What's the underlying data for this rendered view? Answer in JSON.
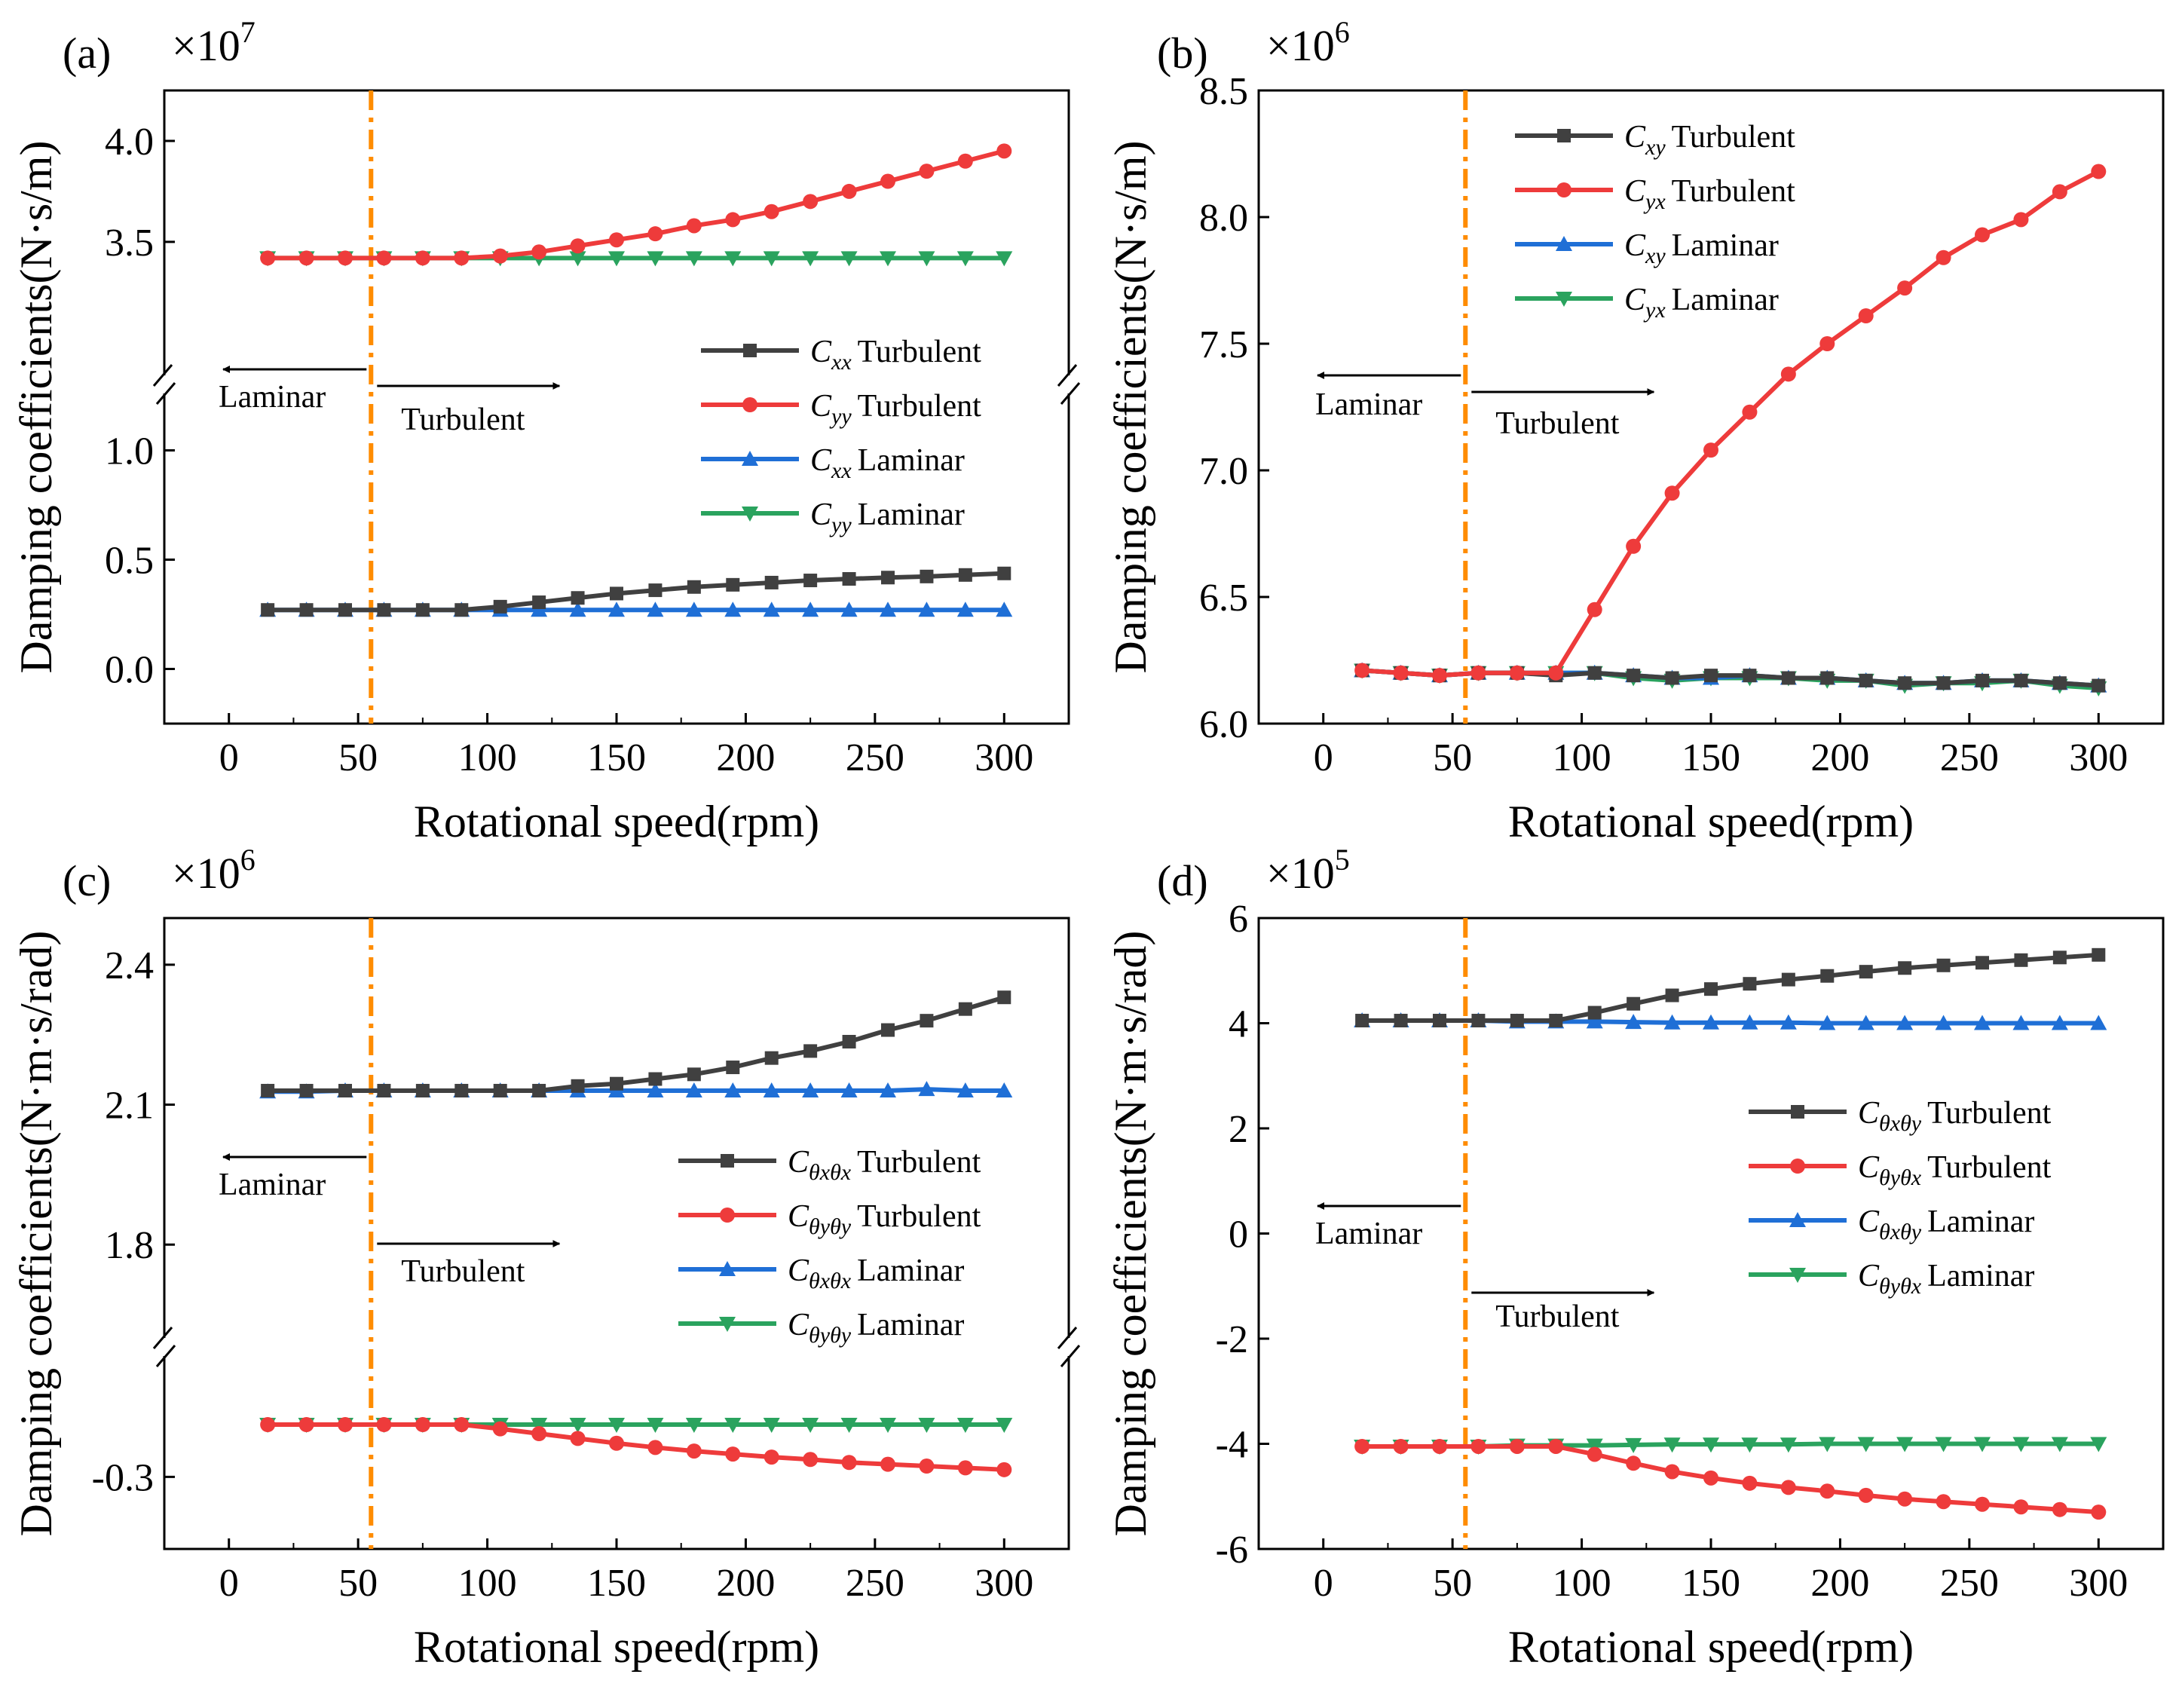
{
  "figure": {
    "colors": {
      "Turbulent_main": "#404040",
      "Turbulent_cross": "#ee3b3b",
      "Laminar_main": "#1f6fd6",
      "Laminar_cross": "#2aa35e",
      "transition": "#ff8c00"
    }
  },
  "chart_data": [
    {
      "id": "a",
      "type": "line",
      "panel_label": "(a)",
      "multiplier": "×10",
      "multiplier_exp": "7",
      "xlabel": "Rotational speed(rpm)",
      "ylabel": "Damping coefficients(N·s/m)",
      "xlim": [
        -25,
        325
      ],
      "xticks": [
        "0",
        "50",
        "100",
        "150",
        "200",
        "250",
        "300"
      ],
      "y_segments": [
        {
          "range": [
            -0.25,
            1.25
          ],
          "ticks": [
            "0.0",
            "0.5",
            "1.0"
          ],
          "tick_values": [
            0.0,
            0.5,
            1.0
          ]
        },
        {
          "range": [
            2.85,
            4.25
          ],
          "ticks": [
            "3.5",
            "4.0"
          ],
          "tick_values": [
            3.5,
            4.0
          ]
        }
      ],
      "x": [
        15,
        30,
        45,
        60,
        75,
        90,
        105,
        120,
        135,
        150,
        165,
        180,
        195,
        210,
        225,
        240,
        255,
        270,
        285,
        300
      ],
      "series": [
        {
          "name": "C",
          "sub": "xx",
          "label": "Turbulent",
          "color": "#404040",
          "marker": "square",
          "values": [
            0.27,
            0.27,
            0.27,
            0.27,
            0.27,
            0.27,
            0.285,
            0.305,
            0.325,
            0.345,
            0.36,
            0.375,
            0.385,
            0.395,
            0.405,
            0.412,
            0.418,
            0.423,
            0.43,
            0.437
          ]
        },
        {
          "name": "C",
          "sub": "yy",
          "label": "Turbulent",
          "color": "#ee3b3b",
          "marker": "circle",
          "values": [
            3.42,
            3.42,
            3.42,
            3.42,
            3.42,
            3.42,
            3.43,
            3.45,
            3.48,
            3.51,
            3.54,
            3.58,
            3.61,
            3.65,
            3.7,
            3.75,
            3.8,
            3.85,
            3.9,
            3.95
          ]
        },
        {
          "name": "C",
          "sub": "xx",
          "label": "Laminar",
          "color": "#1f6fd6",
          "marker": "triangle-up",
          "values": [
            0.27,
            0.27,
            0.27,
            0.27,
            0.27,
            0.27,
            0.27,
            0.27,
            0.27,
            0.27,
            0.27,
            0.27,
            0.27,
            0.27,
            0.27,
            0.27,
            0.27,
            0.27,
            0.27,
            0.27
          ]
        },
        {
          "name": "C",
          "sub": "yy",
          "label": "Laminar",
          "color": "#2aa35e",
          "marker": "triangle-down",
          "values": [
            3.42,
            3.42,
            3.42,
            3.42,
            3.42,
            3.42,
            3.42,
            3.42,
            3.42,
            3.42,
            3.42,
            3.42,
            3.42,
            3.42,
            3.42,
            3.42,
            3.42,
            3.42,
            3.42,
            3.42
          ]
        }
      ],
      "transition_x": 55,
      "annotations": {
        "laminar": "Laminar",
        "turbulent": "Turbulent"
      },
      "legend_position": "right"
    },
    {
      "id": "b",
      "type": "line",
      "panel_label": "(b)",
      "multiplier": "×10",
      "multiplier_exp": "6",
      "xlabel": "Rotational speed(rpm)",
      "ylabel": "Damping coefficients(N·s/m)",
      "xlim": [
        -25,
        325
      ],
      "xticks": [
        "0",
        "50",
        "100",
        "150",
        "200",
        "250",
        "300"
      ],
      "y_segments": [
        {
          "range": [
            6.0,
            8.5
          ],
          "ticks": [
            "6.0",
            "6.5",
            "7.0",
            "7.5",
            "8.0",
            "8.5"
          ],
          "tick_values": [
            6.0,
            6.5,
            7.0,
            7.5,
            8.0,
            8.5
          ]
        }
      ],
      "x": [
        15,
        30,
        45,
        60,
        75,
        90,
        105,
        120,
        135,
        150,
        165,
        180,
        195,
        210,
        225,
        240,
        255,
        270,
        285,
        300
      ],
      "series": [
        {
          "name": "C",
          "sub": "xy",
          "label": "Turbulent",
          "color": "#404040",
          "marker": "square",
          "values": [
            6.21,
            6.2,
            6.19,
            6.2,
            6.2,
            6.19,
            6.2,
            6.19,
            6.18,
            6.19,
            6.19,
            6.18,
            6.18,
            6.17,
            6.16,
            6.16,
            6.17,
            6.17,
            6.16,
            6.15
          ]
        },
        {
          "name": "C",
          "sub": "yx",
          "label": "Turbulent",
          "color": "#ee3b3b",
          "marker": "circle",
          "values": [
            6.21,
            6.2,
            6.19,
            6.2,
            6.2,
            6.2,
            6.45,
            6.7,
            6.91,
            7.08,
            7.23,
            7.38,
            7.5,
            7.61,
            7.72,
            7.84,
            7.93,
            7.99,
            8.1,
            8.18
          ]
        },
        {
          "name": "C",
          "sub": "xy",
          "label": "Laminar",
          "color": "#1f6fd6",
          "marker": "triangle-up",
          "values": [
            6.21,
            6.2,
            6.19,
            6.2,
            6.2,
            6.2,
            6.2,
            6.19,
            6.18,
            6.18,
            6.19,
            6.18,
            6.18,
            6.17,
            6.16,
            6.16,
            6.17,
            6.17,
            6.16,
            6.15
          ]
        },
        {
          "name": "C",
          "sub": "yx",
          "label": "Laminar",
          "color": "#2aa35e",
          "marker": "triangle-down",
          "values": [
            6.21,
            6.2,
            6.19,
            6.2,
            6.2,
            6.2,
            6.2,
            6.18,
            6.17,
            6.18,
            6.18,
            6.18,
            6.17,
            6.17,
            6.15,
            6.16,
            6.16,
            6.17,
            6.15,
            6.14
          ]
        }
      ],
      "transition_x": 55,
      "annotations": {
        "laminar": "Laminar",
        "turbulent": "Turbulent"
      },
      "legend_position": "top-left"
    },
    {
      "id": "c",
      "type": "line",
      "panel_label": "(c)",
      "multiplier": "×10",
      "multiplier_exp": "6",
      "xlabel": "Rotational speed(rpm)",
      "ylabel": "Damping coefficients(N·m·s/rad)",
      "xlim": [
        -25,
        325
      ],
      "xticks": [
        "0",
        "50",
        "100",
        "150",
        "200",
        "250",
        "300"
      ],
      "y_segments": [
        {
          "range": [
            -0.42,
            -0.1
          ],
          "ticks": [
            "-0.3"
          ],
          "tick_values": [
            -0.3
          ]
        },
        {
          "range": [
            1.6,
            2.5
          ],
          "ticks": [
            "1.8",
            "2.1",
            "2.4"
          ],
          "tick_values": [
            1.8,
            2.1,
            2.4
          ]
        }
      ],
      "x": [
        15,
        30,
        45,
        60,
        75,
        90,
        105,
        120,
        135,
        150,
        165,
        180,
        195,
        210,
        225,
        240,
        255,
        270,
        285,
        300
      ],
      "series": [
        {
          "name": "C",
          "sub": "θxθx",
          "label": "Turbulent",
          "color": "#404040",
          "marker": "square",
          "values": [
            2.13,
            2.13,
            2.13,
            2.13,
            2.13,
            2.13,
            2.13,
            2.13,
            2.14,
            2.145,
            2.155,
            2.165,
            2.18,
            2.2,
            2.215,
            2.235,
            2.26,
            2.28,
            2.305,
            2.33
          ]
        },
        {
          "name": "C",
          "sub": "θyθy",
          "label": "Turbulent",
          "color": "#ee3b3b",
          "marker": "circle",
          "values": [
            -0.213,
            -0.213,
            -0.213,
            -0.213,
            -0.213,
            -0.213,
            -0.22,
            -0.228,
            -0.236,
            -0.244,
            -0.251,
            -0.257,
            -0.262,
            -0.267,
            -0.271,
            -0.276,
            -0.279,
            -0.282,
            -0.285,
            -0.288
          ]
        },
        {
          "name": "C",
          "sub": "θxθx",
          "label": "Laminar",
          "color": "#1f6fd6",
          "marker": "triangle-up",
          "values": [
            2.128,
            2.128,
            2.13,
            2.13,
            2.13,
            2.13,
            2.13,
            2.13,
            2.13,
            2.13,
            2.13,
            2.13,
            2.13,
            2.13,
            2.13,
            2.13,
            2.13,
            2.133,
            2.13,
            2.13
          ]
        },
        {
          "name": "C",
          "sub": "θyθy",
          "label": "Laminar",
          "color": "#2aa35e",
          "marker": "triangle-down",
          "values": [
            -0.213,
            -0.213,
            -0.213,
            -0.213,
            -0.213,
            -0.213,
            -0.213,
            -0.213,
            -0.213,
            -0.213,
            -0.213,
            -0.213,
            -0.213,
            -0.213,
            -0.213,
            -0.213,
            -0.213,
            -0.213,
            -0.213,
            -0.213
          ]
        }
      ],
      "transition_x": 55,
      "annotations": {
        "laminar": "Laminar",
        "turbulent": "Turbulent"
      },
      "legend_position": "right"
    },
    {
      "id": "d",
      "type": "line",
      "panel_label": "(d)",
      "multiplier": "×10",
      "multiplier_exp": "5",
      "xlabel": "Rotational speed(rpm)",
      "ylabel": "Damping coefficients(N·m·s/rad)",
      "xlim": [
        -25,
        325
      ],
      "xticks": [
        "0",
        "50",
        "100",
        "150",
        "200",
        "250",
        "300"
      ],
      "y_segments": [
        {
          "range": [
            -6,
            6
          ],
          "ticks": [
            "-6",
            "-4",
            "-2",
            "0",
            "2",
            "4",
            "6"
          ],
          "tick_values": [
            -6,
            -4,
            -2,
            0,
            2,
            4,
            6
          ]
        }
      ],
      "x": [
        15,
        30,
        45,
        60,
        75,
        90,
        105,
        120,
        135,
        150,
        165,
        180,
        195,
        210,
        225,
        240,
        255,
        270,
        285,
        300
      ],
      "series": [
        {
          "name": "C",
          "sub": "θxθy",
          "label": "Turbulent",
          "color": "#404040",
          "marker": "square",
          "values": [
            4.05,
            4.05,
            4.05,
            4.05,
            4.05,
            4.05,
            4.2,
            4.37,
            4.53,
            4.65,
            4.75,
            4.83,
            4.9,
            4.98,
            5.05,
            5.1,
            5.15,
            5.2,
            5.25,
            5.3
          ]
        },
        {
          "name": "C",
          "sub": "θyθx",
          "label": "Turbulent",
          "color": "#ee3b3b",
          "marker": "circle",
          "values": [
            -4.05,
            -4.05,
            -4.05,
            -4.05,
            -4.05,
            -4.05,
            -4.2,
            -4.37,
            -4.53,
            -4.65,
            -4.75,
            -4.83,
            -4.9,
            -4.98,
            -5.05,
            -5.1,
            -5.15,
            -5.2,
            -5.25,
            -5.3
          ]
        },
        {
          "name": "C",
          "sub": "θxθy",
          "label": "Laminar",
          "color": "#1f6fd6",
          "marker": "triangle-up",
          "values": [
            4.05,
            4.05,
            4.05,
            4.05,
            4.03,
            4.03,
            4.03,
            4.02,
            4.01,
            4.01,
            4.01,
            4.01,
            4.0,
            4.0,
            4.0,
            4.0,
            4.0,
            4.0,
            4.0,
            4.0
          ]
        },
        {
          "name": "C",
          "sub": "θyθx",
          "label": "Laminar",
          "color": "#2aa35e",
          "marker": "triangle-down",
          "values": [
            -4.05,
            -4.05,
            -4.05,
            -4.05,
            -4.03,
            -4.03,
            -4.03,
            -4.02,
            -4.01,
            -4.01,
            -4.01,
            -4.01,
            -4.0,
            -4.0,
            -4.0,
            -4.0,
            -4.0,
            -4.0,
            -4.0,
            -4.0
          ]
        }
      ],
      "transition_x": 55,
      "annotations": {
        "laminar": "Laminar",
        "turbulent": "Turbulent"
      },
      "legend_position": "center-right"
    }
  ]
}
